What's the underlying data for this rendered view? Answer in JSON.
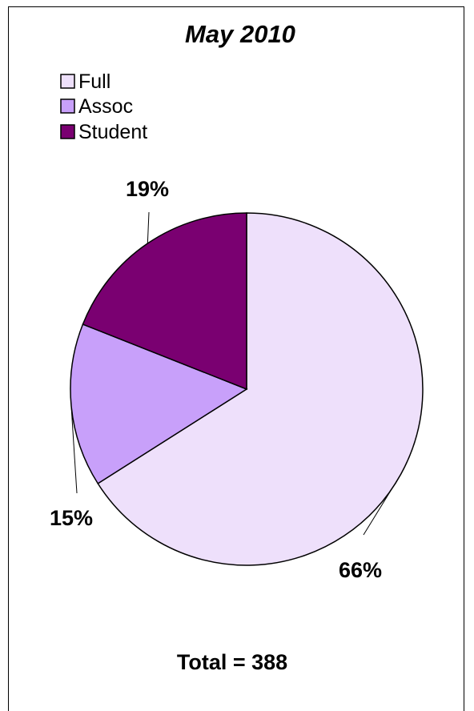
{
  "chart_data": {
    "type": "pie",
    "title": "May 2010",
    "categories": [
      "Full",
      "Assoc",
      "Student"
    ],
    "values": [
      66,
      15,
      19
    ],
    "data_labels": [
      "66%",
      "15%",
      "19%"
    ],
    "colors": [
      "#eee0fb",
      "#c8a0fa",
      "#7a0071"
    ],
    "legend": {
      "position": "top-left",
      "entries": [
        "Full",
        "Assoc",
        "Student"
      ]
    },
    "start_angle_deg": 0,
    "direction": "clockwise",
    "annotation": "Total = 388"
  }
}
